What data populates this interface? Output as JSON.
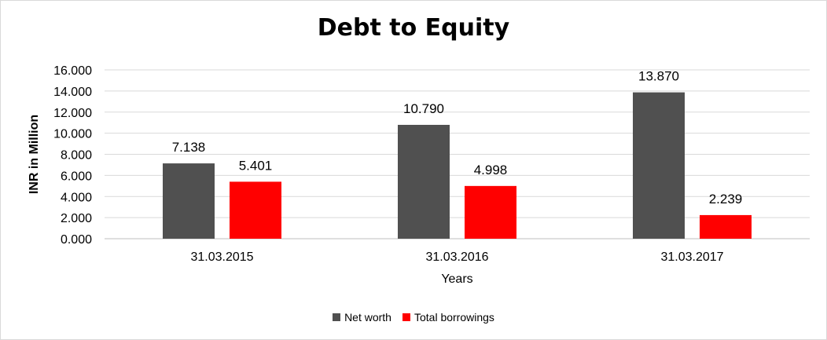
{
  "chart_data": {
    "type": "bar",
    "title": "Debt to Equity",
    "xlabel": "Years",
    "ylabel": "INR in Million",
    "categories": [
      "31.03.2015",
      "31.03.2016",
      "31.03.2017"
    ],
    "series": [
      {
        "name": "Net worth",
        "values": [
          7.138,
          10.79,
          13.87
        ],
        "labels": [
          "7.138",
          "10.790",
          "13.870"
        ],
        "color": "#505050"
      },
      {
        "name": "Total borrowings",
        "values": [
          5.401,
          4.998,
          2.239
        ],
        "labels": [
          "5.401",
          "4.998",
          "2.239"
        ],
        "color": "#ff0000"
      }
    ],
    "ylim": [
      0,
      16
    ],
    "yticks": [
      "0.000",
      "2.000",
      "4.000",
      "6.000",
      "8.000",
      "10.000",
      "12.000",
      "14.000",
      "16.000"
    ],
    "grid": true,
    "legend_position": "bottom"
  }
}
